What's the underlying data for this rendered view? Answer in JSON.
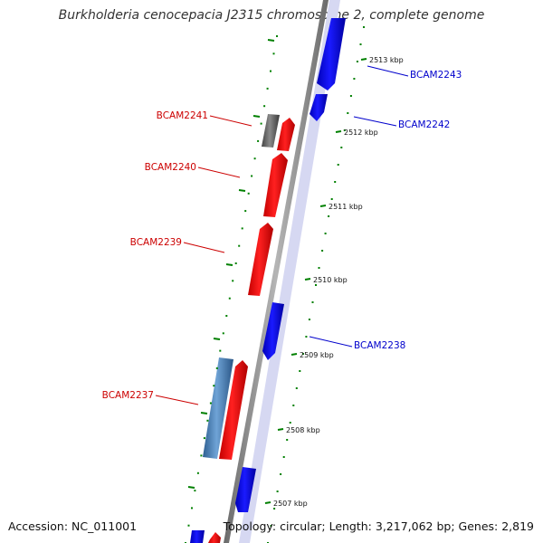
{
  "title": "Burkholderia cenocepacia J2315 chromosome 2, complete genome",
  "footer": {
    "accession": "Accession: NC_011001",
    "info": "Topology: circular; Length: 3,217,062 bp; Genes: 2,819"
  },
  "colors": {
    "forward_gene": "#ff0000",
    "reverse_gene": "#0000ff",
    "pseudo_gene": "#666666",
    "rna_gene": "#4f85c0",
    "backbone": "#888888",
    "tick": "#008000",
    "label_forward": "#cc0000",
    "label_reverse": "#0000cc"
  },
  "scale_ticks": [
    {
      "label": "2513 kbp"
    },
    {
      "label": "2512 kbp"
    },
    {
      "label": "2511 kbp"
    },
    {
      "label": "2510 kbp"
    },
    {
      "label": "2509 kbp"
    },
    {
      "label": "2508 kbp"
    },
    {
      "label": "2507 kbp"
    }
  ],
  "gene_labels": [
    {
      "name": "BCAM2243",
      "strand": "reverse"
    },
    {
      "name": "BCAM2242",
      "strand": "reverse"
    },
    {
      "name": "BCAM2241",
      "strand": "forward"
    },
    {
      "name": "BCAM2240",
      "strand": "forward"
    },
    {
      "name": "BCAM2239",
      "strand": "forward"
    },
    {
      "name": "BCAM2238",
      "strand": "reverse"
    },
    {
      "name": "BCAM2237",
      "strand": "forward"
    }
  ]
}
